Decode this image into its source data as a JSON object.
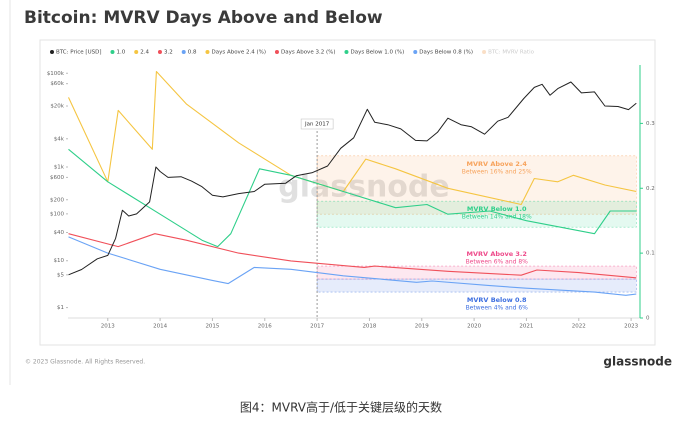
{
  "chart_data": {
    "type": "line",
    "title": "Bitcoin: MVRV Days Above and Below",
    "yscale": "log",
    "xlim": [
      2012.24,
      2023.17
    ],
    "xticks": [
      2013,
      2014,
      2015,
      2016,
      2017,
      2018,
      2019,
      2020,
      2021,
      2022,
      2023
    ],
    "ylim": [
      0.6,
      150000
    ],
    "yticks": [
      {
        "value": 1,
        "label": "$1"
      },
      {
        "value": 5,
        "label": "$5"
      },
      {
        "value": 10,
        "label": "$10"
      },
      {
        "value": 40,
        "label": "$40"
      },
      {
        "value": 100,
        "label": "$100"
      },
      {
        "value": 200,
        "label": "$200"
      },
      {
        "value": 600,
        "label": "$600"
      },
      {
        "value": 1000,
        "label": "$1k"
      },
      {
        "value": 4000,
        "label": "$4k"
      },
      {
        "value": 20000,
        "label": "$20k"
      },
      {
        "value": 60000,
        "label": "$60k"
      },
      {
        "value": 100000,
        "label": "$100k"
      }
    ],
    "y2lim": [
      0,
      0.39
    ],
    "y2ticks": [
      0,
      0.1,
      0.2,
      0.3
    ],
    "series": [
      {
        "name": "BTC: Price [USD]",
        "color": "#222222",
        "x": [
          2012.25,
          2012.5,
          2012.8,
          2013.0,
          2013.15,
          2013.28,
          2013.4,
          2013.55,
          2013.8,
          2013.92,
          2014.0,
          2014.15,
          2014.4,
          2014.6,
          2014.8,
          2015.0,
          2015.2,
          2015.5,
          2015.8,
          2016.0,
          2016.4,
          2016.6,
          2016.9,
          2017.2,
          2017.45,
          2017.7,
          2017.96,
          2018.1,
          2018.35,
          2018.6,
          2018.88,
          2019.1,
          2019.3,
          2019.5,
          2019.75,
          2019.95,
          2020.2,
          2020.45,
          2020.65,
          2020.95,
          2021.15,
          2021.3,
          2021.45,
          2021.6,
          2021.85,
          2022.05,
          2022.3,
          2022.5,
          2022.75,
          2022.95,
          2023.1
        ],
        "values": [
          5,
          6.5,
          11,
          13,
          30,
          120,
          90,
          100,
          180,
          1000,
          800,
          600,
          620,
          500,
          380,
          250,
          230,
          270,
          300,
          430,
          450,
          650,
          750,
          1050,
          2500,
          4200,
          17000,
          9000,
          8000,
          6500,
          3700,
          3600,
          5500,
          11000,
          8000,
          7200,
          5000,
          9500,
          11500,
          29000,
          50000,
          58000,
          34000,
          47000,
          65000,
          38000,
          40000,
          20000,
          19500,
          16800,
          23000
        ]
      },
      {
        "name": "Days Above 2.4 (%)",
        "color": "#f5c542",
        "axis": "y2",
        "x": [
          2012.25,
          2013.0,
          2013.2,
          2013.85,
          2013.93,
          2014.5,
          2015.5,
          2016.5,
          2017.5,
          2017.93,
          2018.5,
          2019.5,
          2020.9,
          2021.15,
          2021.6,
          2021.9,
          2022.5,
          2023.1
        ],
        "values": [
          0.34,
          0.21,
          0.32,
          0.26,
          0.38,
          0.33,
          0.27,
          0.22,
          0.195,
          0.245,
          0.23,
          0.2,
          0.175,
          0.215,
          0.21,
          0.22,
          0.205,
          0.195
        ]
      },
      {
        "name": "Days Above 3.2 (%)",
        "color": "#f0505a",
        "axis": "y2",
        "x": [
          2012.25,
          2013.2,
          2013.9,
          2014.5,
          2015.5,
          2016.5,
          2017.9,
          2018.1,
          2019.5,
          2020.9,
          2021.2,
          2022.0,
          2023.1
        ],
        "values": [
          0.13,
          0.11,
          0.13,
          0.12,
          0.1,
          0.088,
          0.078,
          0.08,
          0.072,
          0.066,
          0.074,
          0.07,
          0.062
        ]
      },
      {
        "name": "Days Below 1.0 (%)",
        "color": "#2fcf8a",
        "axis": "y2",
        "x": [
          2012.25,
          2013.0,
          2014.0,
          2014.8,
          2015.1,
          2015.35,
          2015.9,
          2016.5,
          2017.5,
          2018.5,
          2019.1,
          2019.5,
          2020.3,
          2021.0,
          2022.3,
          2022.6,
          2023.1
        ],
        "values": [
          0.26,
          0.21,
          0.16,
          0.12,
          0.11,
          0.13,
          0.23,
          0.22,
          0.195,
          0.17,
          0.175,
          0.16,
          0.165,
          0.15,
          0.13,
          0.165,
          0.165
        ]
      },
      {
        "name": "Days Below 0.8 (%)",
        "color": "#6aa3f5",
        "axis": "y2",
        "x": [
          2012.25,
          2013.0,
          2014.0,
          2015.0,
          2015.3,
          2015.8,
          2016.5,
          2017.5,
          2018.9,
          2019.2,
          2020.3,
          2021.0,
          2022.3,
          2022.9,
          2023.1
        ],
        "values": [
          0.125,
          0.1,
          0.075,
          0.058,
          0.053,
          0.078,
          0.075,
          0.065,
          0.055,
          0.057,
          0.05,
          0.046,
          0.04,
          0.035,
          0.037
        ]
      }
    ],
    "thresholds": [
      {
        "name": "1.0",
        "color": "#2fcf8a"
      },
      {
        "name": "2.4",
        "color": "#f5c542"
      },
      {
        "name": "3.2",
        "color": "#f0505a"
      },
      {
        "name": "0.8",
        "color": "#6aa3f5"
      }
    ],
    "inactive_legend": {
      "name": "BTC: MVRV Ratio",
      "color": "#f6c9a0"
    },
    "vline": {
      "x": 2017,
      "label": "Jan 2017"
    },
    "bands": [
      {
        "title": "MVRV Above 2.4",
        "subtitle": "Between 16% and 25%",
        "x0": 2017,
        "x1": 2023.1,
        "y0": 0.16,
        "y1": 0.25,
        "color": "#f7a35c"
      },
      {
        "title": "MVRV Below 1.0",
        "subtitle": "Between 14% and 18%",
        "x0": 2017,
        "x1": 2023.1,
        "y0": 0.14,
        "y1": 0.18,
        "color": "#2fcf8a"
      },
      {
        "title": "MVRV Above 3.2",
        "subtitle": "Between 6% and 8%",
        "x0": 2017,
        "x1": 2023.1,
        "y0": 0.06,
        "y1": 0.08,
        "color": "#ee4b8b"
      },
      {
        "title": "MVRV Below 0.8",
        "subtitle": "Between 4% and 6%",
        "x0": 2017,
        "x1": 2023.1,
        "y0": 0.04,
        "y1": 0.06,
        "color": "#3d6fe0"
      }
    ],
    "watermark": "glassnode"
  },
  "footer": {
    "copyright": "© 2023 Glassnode. All Rights Reserved.",
    "brand": "glassnode"
  },
  "caption": "图4：MVRV高于/低于关键层级的天数"
}
